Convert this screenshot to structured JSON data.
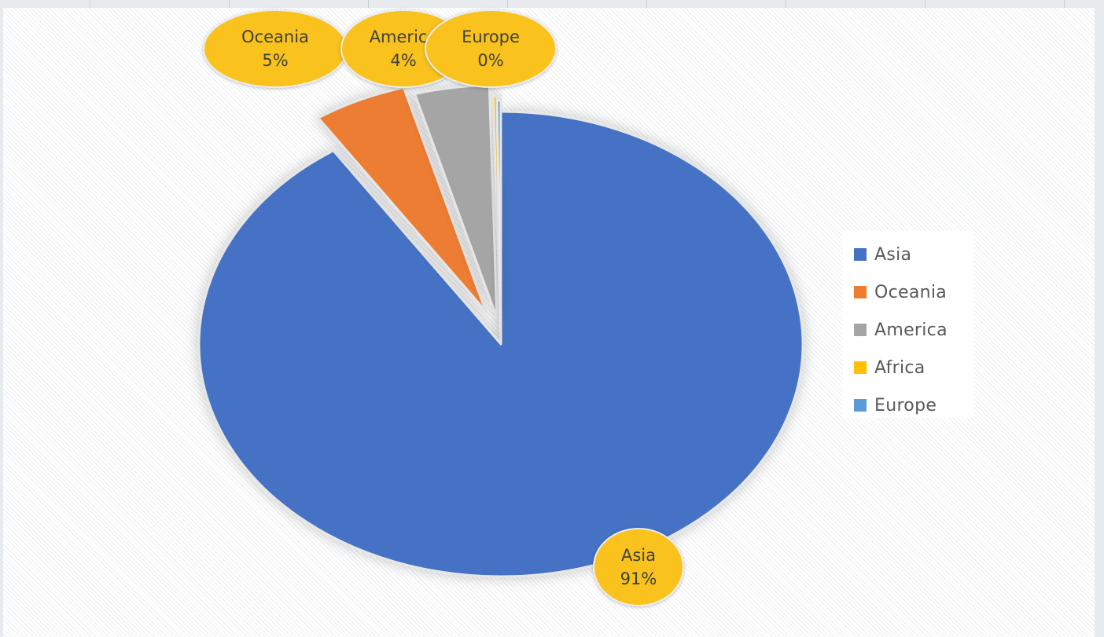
{
  "chart_data": {
    "type": "pie",
    "title": "",
    "start_angle_deg": 0,
    "direction": "clockwise",
    "categories": [
      "Asia",
      "Oceania",
      "America",
      "Africa",
      "Europe"
    ],
    "values": [
      91,
      5,
      4,
      0.2,
      0.2
    ],
    "slices": [
      {
        "label": "Asia",
        "value": 91,
        "color": "#4472c4",
        "exploded": false,
        "data_label": {
          "name": "Asia",
          "percent": "91%"
        }
      },
      {
        "label": "Oceania",
        "value": 5,
        "color": "#ed7d31",
        "exploded": true,
        "data_label": {
          "name": "Oceania",
          "percent": "5%"
        }
      },
      {
        "label": "America",
        "value": 4,
        "color": "#a5a5a5",
        "exploded": true,
        "data_label": {
          "name": "America",
          "percent": "4%"
        }
      },
      {
        "label": "Africa",
        "value": 0.2,
        "color": "#ffc000",
        "exploded": true,
        "data_label": null
      },
      {
        "label": "Europe",
        "value": 0.2,
        "color": "#5b9bd5",
        "exploded": true,
        "data_label": {
          "name": "Europe",
          "percent": "0%"
        }
      }
    ],
    "data_label_bubble_color": "#f9c21d",
    "legend": {
      "position": "right",
      "entries": [
        {
          "label": "Asia",
          "color": "#4472c4"
        },
        {
          "label": "Oceania",
          "color": "#ed7d31"
        },
        {
          "label": "America",
          "color": "#a5a5a5"
        },
        {
          "label": "Africa",
          "color": "#ffc000"
        },
        {
          "label": "Europe",
          "color": "#5b9bd5"
        }
      ]
    }
  }
}
